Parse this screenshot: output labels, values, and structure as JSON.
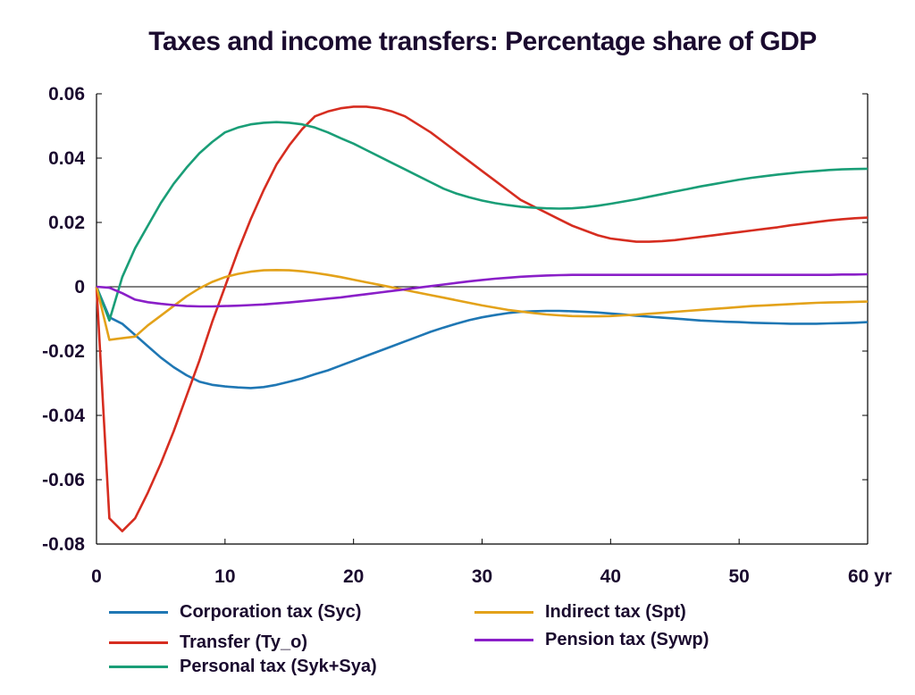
{
  "chart_data": {
    "type": "line",
    "title": "Taxes and income transfers: Percentage share of GDP",
    "xlabel": "",
    "ylabel": "",
    "x_unit_label": "yr",
    "xlim": [
      0,
      60
    ],
    "ylim": [
      -0.08,
      0.06
    ],
    "x_ticks": [
      0,
      10,
      20,
      30,
      40,
      50,
      60
    ],
    "x_tick_labels": [
      "0",
      "10",
      "20",
      "30",
      "40",
      "50",
      "60 yr"
    ],
    "y_ticks": [
      0.06,
      0.04,
      0.02,
      0,
      -0.02,
      -0.04,
      -0.06,
      -0.08
    ],
    "y_tick_labels": [
      "0.06",
      "0.04",
      "0.02",
      "0",
      "-0.02",
      "-0.04",
      "-0.06",
      "-0.08"
    ],
    "grid": false,
    "zero_line": true,
    "legend_position": "bottom",
    "x": [
      0,
      1,
      2,
      3,
      4,
      5,
      6,
      7,
      8,
      9,
      10,
      11,
      12,
      13,
      14,
      15,
      16,
      17,
      18,
      19,
      20,
      21,
      22,
      23,
      24,
      25,
      26,
      27,
      28,
      29,
      30,
      31,
      32,
      33,
      34,
      35,
      36,
      37,
      38,
      39,
      40,
      41,
      42,
      43,
      44,
      45,
      46,
      47,
      48,
      49,
      50,
      51,
      52,
      53,
      54,
      55,
      56,
      57,
      58,
      59,
      60
    ],
    "series": [
      {
        "name": "Corporation tax (Syc)",
        "color": "#1f77b4",
        "values": [
          0,
          -0.0095,
          -0.0115,
          -0.015,
          -0.0185,
          -0.022,
          -0.025,
          -0.0275,
          -0.0295,
          -0.0305,
          -0.031,
          -0.0313,
          -0.0315,
          -0.0312,
          -0.0305,
          -0.0295,
          -0.0285,
          -0.0272,
          -0.026,
          -0.0245,
          -0.023,
          -0.0215,
          -0.02,
          -0.0185,
          -0.017,
          -0.0155,
          -0.014,
          -0.0127,
          -0.0115,
          -0.0104,
          -0.0095,
          -0.0088,
          -0.0082,
          -0.0078,
          -0.0076,
          -0.0075,
          -0.0075,
          -0.0076,
          -0.0078,
          -0.008,
          -0.0083,
          -0.0086,
          -0.009,
          -0.0093,
          -0.0096,
          -0.0099,
          -0.0102,
          -0.0105,
          -0.0107,
          -0.0109,
          -0.011,
          -0.0112,
          -0.0113,
          -0.0114,
          -0.0115,
          -0.0115,
          -0.0115,
          -0.0114,
          -0.0113,
          -0.0112,
          -0.011
        ]
      },
      {
        "name": "Transfer (Ty_o)",
        "color": "#d62d20",
        "values": [
          0,
          -0.072,
          -0.076,
          -0.072,
          -0.064,
          -0.055,
          -0.045,
          -0.034,
          -0.023,
          -0.011,
          0.0,
          0.011,
          0.021,
          0.03,
          0.038,
          0.044,
          0.049,
          0.053,
          0.0545,
          0.0555,
          0.056,
          0.056,
          0.0555,
          0.0545,
          0.053,
          0.0505,
          0.048,
          0.045,
          0.042,
          0.039,
          0.036,
          0.033,
          0.03,
          0.027,
          0.025,
          0.023,
          0.021,
          0.019,
          0.0175,
          0.016,
          0.015,
          0.0145,
          0.014,
          0.014,
          0.0142,
          0.0145,
          0.015,
          0.0155,
          0.016,
          0.0165,
          0.017,
          0.0175,
          0.018,
          0.0185,
          0.0191,
          0.0196,
          0.0201,
          0.0206,
          0.021,
          0.0213,
          0.0215
        ]
      },
      {
        "name": "Personal tax (Syk+Sya)",
        "color": "#1a9e77",
        "values": [
          0,
          -0.0105,
          0.003,
          0.012,
          0.019,
          0.026,
          0.032,
          0.037,
          0.0415,
          0.045,
          0.048,
          0.0495,
          0.0505,
          0.051,
          0.0512,
          0.051,
          0.0505,
          0.0495,
          0.048,
          0.0462,
          0.0445,
          0.0425,
          0.0405,
          0.0385,
          0.0365,
          0.0345,
          0.0325,
          0.0305,
          0.029,
          0.0278,
          0.0268,
          0.026,
          0.0254,
          0.0249,
          0.0246,
          0.0244,
          0.0243,
          0.0244,
          0.0247,
          0.0252,
          0.0258,
          0.0265,
          0.0272,
          0.028,
          0.0288,
          0.0296,
          0.0304,
          0.0312,
          0.0319,
          0.0326,
          0.0333,
          0.0339,
          0.0344,
          0.0349,
          0.0353,
          0.0357,
          0.036,
          0.0363,
          0.0365,
          0.0366,
          0.0367
        ]
      },
      {
        "name": "Indirect tax (Spt)",
        "color": "#e3a21a",
        "values": [
          0,
          -0.0165,
          -0.016,
          -0.0155,
          -0.012,
          -0.009,
          -0.006,
          -0.003,
          -0.0005,
          0.0015,
          0.003,
          0.004,
          0.0047,
          0.0051,
          0.0052,
          0.0051,
          0.0048,
          0.0043,
          0.0037,
          0.003,
          0.0022,
          0.0014,
          0.0006,
          -0.0002,
          -0.001,
          -0.0018,
          -0.0026,
          -0.0034,
          -0.0042,
          -0.005,
          -0.0058,
          -0.0065,
          -0.0072,
          -0.0077,
          -0.0082,
          -0.0086,
          -0.0089,
          -0.0091,
          -0.0092,
          -0.0092,
          -0.0091,
          -0.0089,
          -0.0087,
          -0.0084,
          -0.0081,
          -0.0078,
          -0.0075,
          -0.0072,
          -0.0069,
          -0.0066,
          -0.0063,
          -0.006,
          -0.0058,
          -0.0056,
          -0.0054,
          -0.0052,
          -0.005,
          -0.0049,
          -0.0048,
          -0.0047,
          -0.0046
        ]
      },
      {
        "name": "Pension tax (Sywp)",
        "color": "#8a1fc8",
        "values": [
          0,
          -0.0003,
          -0.002,
          -0.004,
          -0.0048,
          -0.0053,
          -0.0057,
          -0.006,
          -0.0061,
          -0.0061,
          -0.006,
          -0.0059,
          -0.0057,
          -0.0055,
          -0.0052,
          -0.0049,
          -0.0045,
          -0.0041,
          -0.0037,
          -0.0033,
          -0.0028,
          -0.0023,
          -0.0018,
          -0.0013,
          -0.0008,
          -0.0003,
          0.0002,
          0.0007,
          0.0012,
          0.0017,
          0.0021,
          0.0025,
          0.0028,
          0.0031,
          0.0033,
          0.0035,
          0.0036,
          0.0037,
          0.0037,
          0.0037,
          0.0037,
          0.0037,
          0.0037,
          0.0037,
          0.0037,
          0.0037,
          0.0037,
          0.0037,
          0.0037,
          0.0037,
          0.0037,
          0.0037,
          0.0037,
          0.0037,
          0.0037,
          0.0037,
          0.0037,
          0.0037,
          0.0038,
          0.0038,
          0.0039
        ]
      }
    ]
  }
}
